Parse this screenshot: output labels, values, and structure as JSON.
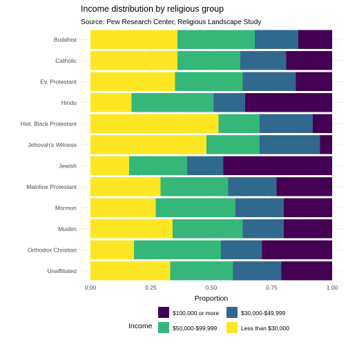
{
  "chart_data": {
    "type": "bar",
    "orientation": "horizontal",
    "stacked": true,
    "title": "Income distribution by religious group",
    "subtitle": "Source: Pew Research Center, Religious Landscape Study",
    "xlabel": "Proportion",
    "ylabel": "",
    "xlim": [
      0,
      1
    ],
    "x_ticks": [
      "0.00",
      "0.25",
      "0.50",
      "0.75",
      "1.00"
    ],
    "grid": true,
    "legend": {
      "title": "Income",
      "position": "bottom",
      "entries": [
        "$100,000 or more",
        "$30,000-$49,999",
        "$50,000-$99,999",
        "Less than $30,000"
      ]
    },
    "categories": [
      "Buddhist",
      "Catholic",
      "Ev. Protestant",
      "Hindu",
      "Hist. Black Protestant",
      "Jehovah's Witness",
      "Jewish",
      "Mainline Protestant",
      "Mormon",
      "Muslim",
      "Orthodox Christian",
      "Unaffiliated"
    ],
    "series": [
      {
        "name": "Less than $30,000",
        "color": "#fde725",
        "values": [
          0.36,
          0.36,
          0.35,
          0.17,
          0.53,
          0.48,
          0.16,
          0.29,
          0.27,
          0.34,
          0.18,
          0.33
        ]
      },
      {
        "name": "$50,000-$99,999",
        "color": "#35b779",
        "values": [
          0.32,
          0.26,
          0.28,
          0.34,
          0.17,
          0.22,
          0.24,
          0.28,
          0.33,
          0.29,
          0.36,
          0.26
        ]
      },
      {
        "name": "$30,000-$49,999",
        "color": "#31688e",
        "values": [
          0.18,
          0.19,
          0.22,
          0.13,
          0.22,
          0.25,
          0.15,
          0.2,
          0.2,
          0.17,
          0.17,
          0.2
        ]
      },
      {
        "name": "$100,000 or more",
        "color": "#440154",
        "values": [
          0.14,
          0.19,
          0.15,
          0.36,
          0.08,
          0.05,
          0.45,
          0.23,
          0.2,
          0.2,
          0.29,
          0.21
        ]
      }
    ]
  }
}
